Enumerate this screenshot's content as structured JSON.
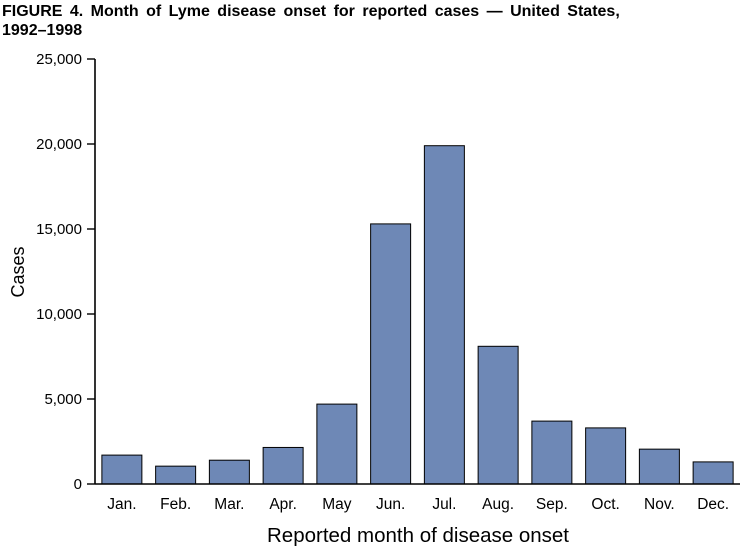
{
  "header": {
    "line1": "FIGURE 4. Month of Lyme disease onset for reported cases — United States,",
    "line2": "1992–1998"
  },
  "chart_data": {
    "type": "bar",
    "title": "FIGURE 4. Month of Lyme disease onset for reported cases — United States, 1992–1998",
    "categories": [
      "Jan.",
      "Feb.",
      "Mar.",
      "Apr.",
      "May",
      "Jun.",
      "Jul.",
      "Aug.",
      "Sep.",
      "Oct.",
      "Nov.",
      "Dec."
    ],
    "values": [
      1700,
      1050,
      1400,
      2150,
      4700,
      15300,
      19900,
      8100,
      3700,
      3300,
      2050,
      1300
    ],
    "xlabel": "Reported month of disease onset",
    "ylabel": "Cases",
    "ylim": [
      0,
      25000
    ],
    "yticks": [
      0,
      5000,
      10000,
      15000,
      20000,
      25000
    ],
    "ytick_labels": [
      "0",
      "5,000",
      "10,000",
      "15,000",
      "20,000",
      "25,000"
    ],
    "grid": false,
    "legend": "none",
    "colors": {
      "bar_fill": "#6e88b6",
      "bar_stroke": "#000000",
      "axis": "#000000",
      "background": "#ffffff"
    }
  }
}
